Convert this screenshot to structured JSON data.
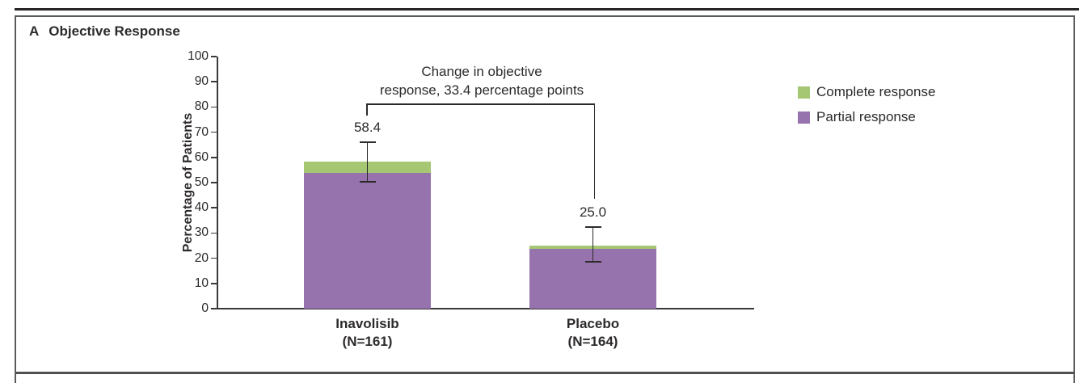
{
  "panel": {
    "letter": "A",
    "title": "Objective Response"
  },
  "chart_data": {
    "type": "bar",
    "stacked": true,
    "title": "Objective Response",
    "xlabel": "",
    "ylabel": "Percentage of Patients",
    "ylim": [
      0,
      100
    ],
    "yticks": [
      0,
      10,
      20,
      30,
      40,
      50,
      60,
      70,
      80,
      90,
      100
    ],
    "grid": false,
    "legend_position": "right",
    "categories": [
      "Inavolisib",
      "Placebo"
    ],
    "category_sublabels": [
      "(N=161)",
      "(N=164)"
    ],
    "series": [
      {
        "name": "Partial response",
        "color": "#9673ad",
        "values": [
          54.0,
          23.8
        ]
      },
      {
        "name": "Complete response",
        "color": "#a5c672",
        "values": [
          4.4,
          1.2
        ]
      }
    ],
    "totals": [
      58.4,
      25.0
    ],
    "total_labels": [
      "58.4",
      "25.0"
    ],
    "error_bars": [
      {
        "low": 50.4,
        "high": 66.1
      },
      {
        "low": 18.5,
        "high": 32.3
      }
    ],
    "annotation": {
      "line1": "Change in objective",
      "line2": "response, 33.4 percentage points"
    },
    "legend": [
      {
        "label": "Complete response",
        "color": "#a5c672"
      },
      {
        "label": "Partial response",
        "color": "#9673ad"
      }
    ]
  },
  "colors": {
    "text": "#2d2a2c",
    "axis": "#3a3839",
    "top_rule": "#272425",
    "panel_border": "#5a5b5d",
    "complete_response": "#a5c672",
    "partial_response": "#9673ad"
  }
}
